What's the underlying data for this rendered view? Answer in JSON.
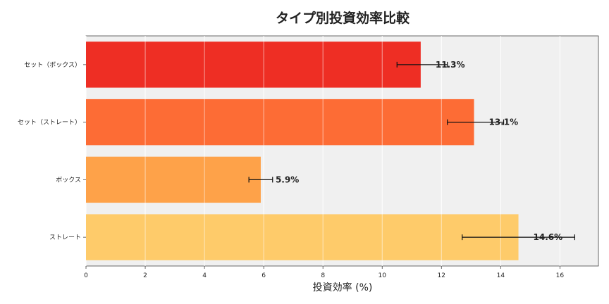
{
  "chart_data": {
    "type": "bar",
    "orientation": "horizontal",
    "title": "タイプ別投資効率比較",
    "xlabel": "投資効率 (%)",
    "ylabel": "",
    "categories": [
      "セット（ボックス）",
      "セット（ストレート）",
      "ボックス",
      "ストレート"
    ],
    "values": [
      11.3,
      13.1,
      5.9,
      14.6
    ],
    "data_labels": [
      "11.3%",
      "13.1%",
      "5.9%",
      "14.6%"
    ],
    "error_low": [
      10.5,
      12.2,
      5.5,
      12.7
    ],
    "error_high": [
      12.2,
      14.1,
      6.3,
      16.5
    ],
    "colors": [
      "#ee2e24",
      "#fd6c35",
      "#fea249",
      "#fecb6a"
    ],
    "xlim": [
      0,
      17.3
    ],
    "xticks": [
      0,
      2,
      4,
      6,
      8,
      10,
      12,
      14,
      16
    ],
    "grid": true,
    "legend": "none",
    "plot_background": "#f0f0f0"
  }
}
